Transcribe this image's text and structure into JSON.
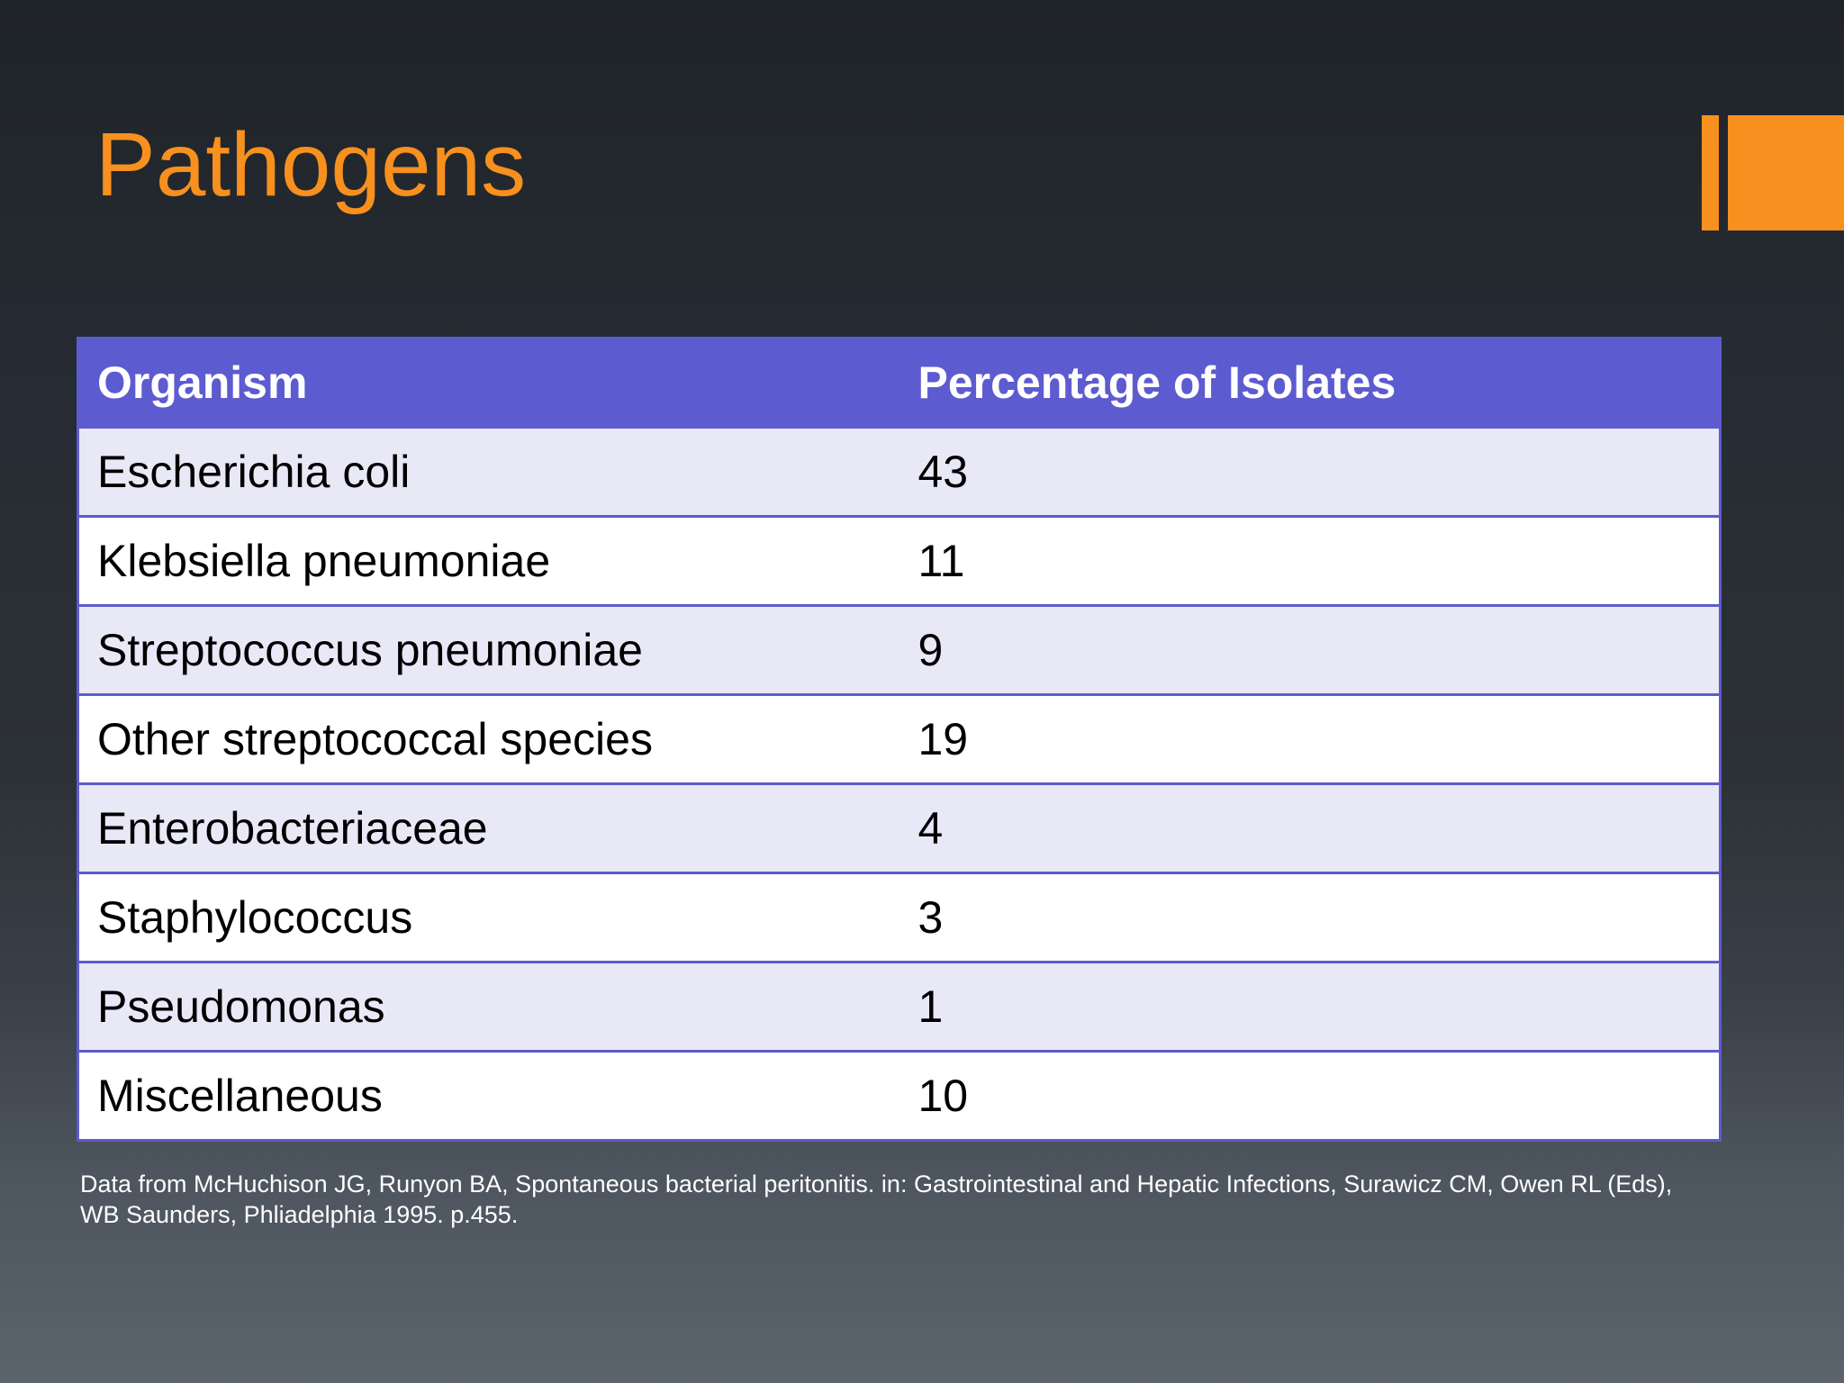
{
  "slide": {
    "title": "Pathogens",
    "accent_color": "#f7901e"
  },
  "table": {
    "header_color": "#5d5bd0",
    "columns": [
      "Organism",
      "Percentage of Isolates"
    ],
    "rows": [
      {
        "organism": "Escherichia coli",
        "percentage": "43"
      },
      {
        "organism": "Klebsiella pneumoniae",
        "percentage": "11"
      },
      {
        "organism": "Streptococcus pneumoniae",
        "percentage": "9"
      },
      {
        "organism": "Other streptococcal species",
        "percentage": "19"
      },
      {
        "organism": "Enterobacteriaceae",
        "percentage": "4"
      },
      {
        "organism": "Staphylococcus",
        "percentage": "3"
      },
      {
        "organism": "Pseudomonas",
        "percentage": "1"
      },
      {
        "organism": "Miscellaneous",
        "percentage": "10"
      }
    ]
  },
  "footnote": "Data from McHuchison JG, Runyon BA, Spontaneous bacterial peritonitis. in: Gastrointestinal and Hepatic Infections, Surawicz CM, Owen RL (Eds), WB Saunders, Phliadelphia 1995. p.455."
}
